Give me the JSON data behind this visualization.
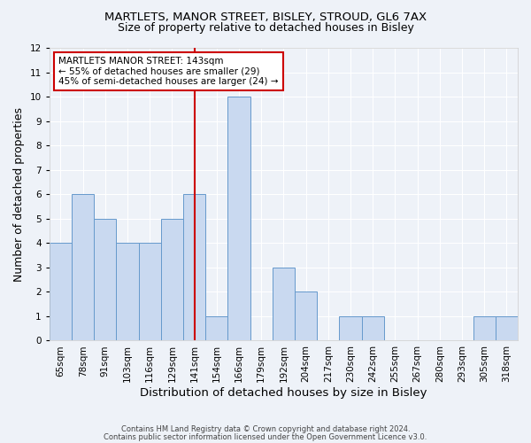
{
  "title1": "MARTLETS, MANOR STREET, BISLEY, STROUD, GL6 7AX",
  "title2": "Size of property relative to detached houses in Bisley",
  "xlabel": "Distribution of detached houses by size in Bisley",
  "ylabel": "Number of detached properties",
  "categories": [
    "65sqm",
    "78sqm",
    "91sqm",
    "103sqm",
    "116sqm",
    "129sqm",
    "141sqm",
    "154sqm",
    "166sqm",
    "179sqm",
    "192sqm",
    "204sqm",
    "217sqm",
    "230sqm",
    "242sqm",
    "255sqm",
    "267sqm",
    "280sqm",
    "293sqm",
    "305sqm",
    "318sqm"
  ],
  "values": [
    4,
    6,
    5,
    4,
    4,
    5,
    6,
    1,
    10,
    0,
    3,
    2,
    0,
    1,
    1,
    0,
    0,
    0,
    0,
    1,
    1
  ],
  "bar_color": "#c9d9f0",
  "bar_edge_color": "#6699cc",
  "vline_x": 6,
  "vline_color": "#cc0000",
  "annotation_text": "MARTLETS MANOR STREET: 143sqm\n← 55% of detached houses are smaller (29)\n45% of semi-detached houses are larger (24) →",
  "annotation_box_edgecolor": "#cc0000",
  "annotation_box_facecolor": "#ffffff",
  "ylim": [
    0,
    12
  ],
  "yticks": [
    0,
    1,
    2,
    3,
    4,
    5,
    6,
    7,
    8,
    9,
    10,
    11,
    12
  ],
  "footnote1": "Contains HM Land Registry data © Crown copyright and database right 2024.",
  "footnote2": "Contains public sector information licensed under the Open Government Licence v3.0.",
  "bg_color": "#eef2f8",
  "grid_color": "#ffffff",
  "title1_fontsize": 9.5,
  "title2_fontsize": 9,
  "axis_label_fontsize": 9,
  "tick_fontsize": 7.5
}
